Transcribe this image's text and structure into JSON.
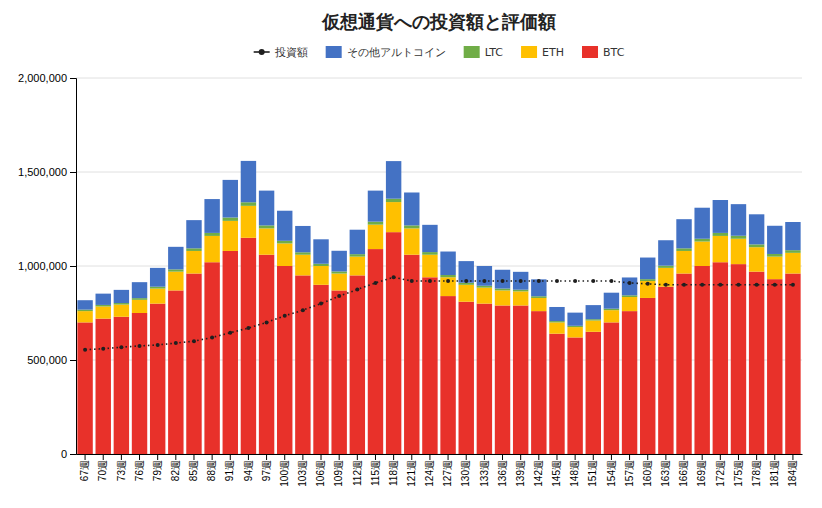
{
  "chart_data": {
    "type": "bar",
    "title": "仮想通貨への投資額と評価額",
    "stacked": true,
    "grid": true,
    "legend": "top",
    "categories": [
      "67週",
      "70週",
      "73週",
      "76週",
      "79週",
      "82週",
      "85週",
      "88週",
      "91週",
      "94週",
      "97週",
      "100週",
      "103週",
      "106週",
      "109週",
      "112週",
      "115週",
      "118週",
      "121週",
      "124週",
      "127週",
      "130週",
      "133週",
      "136週",
      "139週",
      "142週",
      "145週",
      "148週",
      "151週",
      "154週",
      "157週",
      "160週",
      "163週",
      "166週",
      "169週",
      "172週",
      "175週",
      "178週",
      "181週",
      "184週"
    ],
    "ylim": [
      0,
      2000000
    ],
    "yticks": [
      0,
      {
        "value": 500000,
        "label": "500,000"
      },
      {
        "value": 1000000,
        "label": "1,000,000"
      },
      {
        "value": 1500000,
        "label": "1,500,000"
      },
      {
        "value": 2000000,
        "label": "2,000,000"
      }
    ],
    "series": [
      {
        "name": "BTC",
        "type": "bar",
        "color": "#e8312a",
        "values": [
          700000,
          720000,
          730000,
          750000,
          800000,
          870000,
          960000,
          1020000,
          1080000,
          1150000,
          1060000,
          1000000,
          950000,
          900000,
          870000,
          950000,
          1090000,
          1180000,
          1060000,
          940000,
          840000,
          810000,
          800000,
          790000,
          790000,
          760000,
          640000,
          620000,
          650000,
          700000,
          760000,
          830000,
          890000,
          960000,
          1000000,
          1020000,
          1010000,
          970000,
          930000,
          960000
        ]
      },
      {
        "name": "ETH",
        "type": "bar",
        "color": "#ffc000",
        "values": [
          60000,
          65000,
          65000,
          70000,
          80000,
          100000,
          120000,
          140000,
          160000,
          170000,
          140000,
          120000,
          110000,
          100000,
          90000,
          100000,
          130000,
          160000,
          140000,
          120000,
          100000,
          90000,
          85000,
          80000,
          75000,
          70000,
          60000,
          55000,
          60000,
          65000,
          75000,
          90000,
          100000,
          120000,
          130000,
          140000,
          135000,
          130000,
          120000,
          110000
        ]
      },
      {
        "name": "LTC",
        "type": "bar",
        "color": "#70ad47",
        "values": [
          8000,
          8000,
          8000,
          9000,
          10000,
          12000,
          14000,
          16000,
          18000,
          19000,
          16000,
          14000,
          13000,
          12000,
          11000,
          13000,
          16000,
          18000,
          16000,
          14000,
          12000,
          11000,
          10000,
          10000,
          9000,
          9000,
          7000,
          7000,
          7000,
          8000,
          9000,
          10000,
          12000,
          14000,
          15000,
          16000,
          16000,
          15000,
          14000,
          14000
        ]
      },
      {
        "name": "その他アルトコイン",
        "type": "bar",
        "color": "#4472c4",
        "values": [
          50000,
          60000,
          70000,
          85000,
          100000,
          120000,
          150000,
          180000,
          200000,
          220000,
          185000,
          160000,
          140000,
          130000,
          110000,
          130000,
          165000,
          200000,
          175000,
          145000,
          125000,
          115000,
          105000,
          100000,
          95000,
          90000,
          75000,
          70000,
          75000,
          85000,
          95000,
          115000,
          135000,
          155000,
          165000,
          175000,
          168000,
          160000,
          150000,
          150000
        ]
      },
      {
        "name": "投資額",
        "type": "line",
        "color": "#1f1f1f",
        "marker": "circle",
        "line_style": "dotted",
        "values": [
          555000,
          560000,
          568000,
          575000,
          580000,
          590000,
          600000,
          620000,
          645000,
          670000,
          700000,
          735000,
          765000,
          800000,
          840000,
          875000,
          910000,
          940000,
          920000,
          920000,
          920000,
          920000,
          920000,
          920000,
          920000,
          920000,
          920000,
          920000,
          920000,
          920000,
          910000,
          905000,
          900000,
          900000,
          900000,
          900000,
          900000,
          900000,
          900000,
          900000
        ]
      }
    ]
  }
}
